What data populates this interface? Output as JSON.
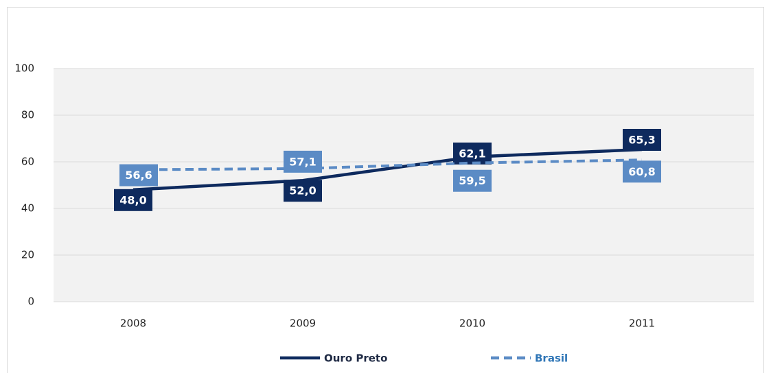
{
  "chart_data": {
    "type": "line",
    "categories": [
      "2008",
      "2009",
      "2010",
      "2011"
    ],
    "series": [
      {
        "name": "Ouro Preto",
        "color": "#0e2a5e",
        "values": [
          48.0,
          52.0,
          62.1,
          65.3
        ],
        "value_labels": [
          "48,0",
          "52,0",
          "62,1",
          "65,3"
        ]
      },
      {
        "name": "Brasil",
        "color": "#5b8bc5",
        "values": [
          56.6,
          57.1,
          59.5,
          60.8
        ],
        "value_labels": [
          "56,6",
          "57,1",
          "59,5",
          "60,8"
        ]
      }
    ],
    "ylim": [
      0,
      100
    ],
    "yticks": [
      0,
      20,
      40,
      60,
      80,
      100
    ],
    "grid": true
  }
}
